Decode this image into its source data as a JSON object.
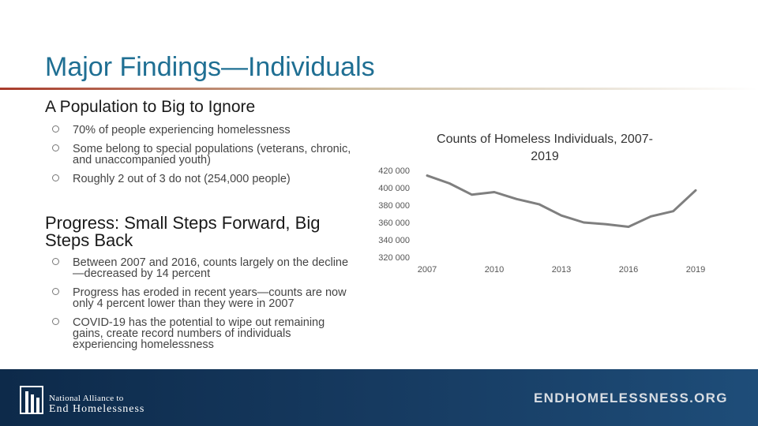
{
  "slide": {
    "title": "Major Findings—Individuals",
    "section1": {
      "heading": "A Population to Big to Ignore",
      "bullets": [
        "70% of people experiencing homelessness",
        "Some belong to special populations (veterans, chronic, and unaccompanied youth)",
        "Roughly 2 out of 3 do not (254,000 people)"
      ]
    },
    "section2": {
      "heading": "Progress:  Small Steps Forward, Big Steps Back",
      "bullets": [
        "Between 2007 and 2016, counts largely on the decline—decreased by 14 percent",
        "Progress has eroded in recent years—counts are now only 4 percent lower than they were in 2007",
        "COVID-19 has the potential to wipe out remaining gains, create record numbers of individuals experiencing homelessness"
      ]
    }
  },
  "footer": {
    "logo_line1": "National Alliance to",
    "logo_line2": "End Homelessness",
    "url": "ENDHOMELESSNESS.ORG"
  },
  "chart_data": {
    "type": "line",
    "title": "Counts of Homeless Individuals, 2007-2019",
    "x": [
      2007,
      2008,
      2009,
      2010,
      2011,
      2012,
      2013,
      2014,
      2015,
      2016,
      2017,
      2018,
      2019
    ],
    "y_tick_labels": [
      "420 000",
      "400 000",
      "380 000",
      "360 000",
      "340 000",
      "320 000"
    ],
    "x_tick_labels": [
      "2007",
      "2010",
      "2013",
      "2016",
      "2019"
    ],
    "series": [
      {
        "values": [
          414000,
          405000,
          392000,
          395000,
          387000,
          381000,
          368000,
          360000,
          358000,
          355000,
          367000,
          373000,
          397000
        ]
      }
    ],
    "ylim": [
      320000,
      420000
    ],
    "grid": false,
    "line_color": "#7f7f7f"
  }
}
